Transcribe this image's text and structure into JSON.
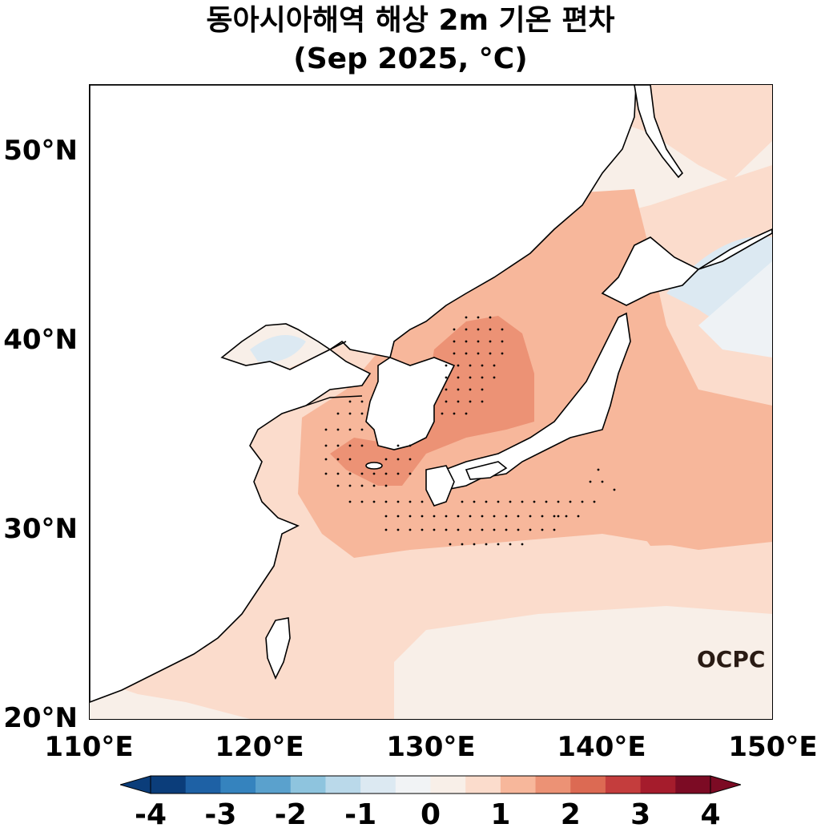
{
  "title": {
    "line1": "동아시아해역 해상 2m 기온 편차",
    "line2": "(Sep 2025, °C)"
  },
  "map": {
    "lon_range": [
      110,
      150
    ],
    "lat_range": [
      20,
      53.5
    ],
    "lat_ticks": [
      "50°N",
      "40°N",
      "30°N",
      "20°N"
    ],
    "lon_ticks": [
      "110°E",
      "120°E",
      "130°E",
      "140°E",
      "150°E"
    ],
    "stippling": "statistically significant anomaly regions over Yellow Sea, East Sea and south of Japan"
  },
  "colorbar": {
    "levels": [
      -4,
      -3.5,
      -3,
      -2.5,
      -2,
      -1.5,
      -1,
      -0.5,
      0,
      0.5,
      1,
      1.5,
      2,
      2.5,
      3,
      3.5,
      4
    ],
    "labels": [
      "-4",
      "-3",
      "-2",
      "-1",
      "0",
      "1",
      "2",
      "3",
      "4"
    ],
    "colors": [
      "#0b3d7a",
      "#1e61a5",
      "#3583be",
      "#5aa1cd",
      "#8ec4de",
      "#bad9ea",
      "#dce9f2",
      "#f1f3f5",
      "#f8efe8",
      "#fbdccc",
      "#f7b79b",
      "#ec9275",
      "#dc6a53",
      "#c43d3d",
      "#a51c2c",
      "#7c0b24"
    ],
    "extend": "both"
  },
  "logo": "OCPC"
}
